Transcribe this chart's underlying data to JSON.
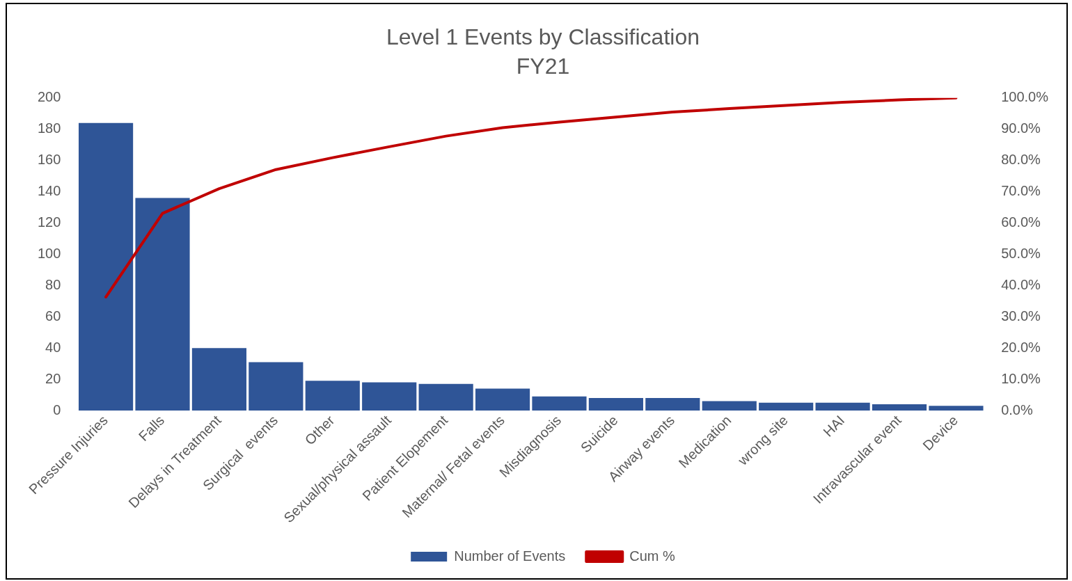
{
  "chart_data": {
    "type": "bar",
    "title": "Level 1 Events by Classification",
    "subtitle": "FY21",
    "categories": [
      "Pressure Injuries",
      "Falls",
      "Delays in Treatment",
      "Surgical  events",
      "Other",
      "Sexual/physical assault",
      "Patient Elopement",
      "Maternal/ Fetal events",
      "Misdiagnosis",
      "Suicide",
      "Airway events",
      "Medication",
      "wrong site",
      "HAI",
      "Intravascular event",
      "Device"
    ],
    "series": [
      {
        "name": "Number of Events",
        "color": "#2f5597",
        "values": [
          184,
          136,
          40,
          31,
          19,
          18,
          17,
          14,
          9,
          8,
          8,
          6,
          5,
          5,
          4,
          3
        ]
      },
      {
        "name": "Cum %",
        "type": "line",
        "axis": "y2",
        "color": "#c00000",
        "values": [
          36.3,
          63.1,
          71.0,
          77.1,
          80.9,
          84.4,
          87.8,
          90.5,
          92.3,
          93.9,
          95.5,
          96.6,
          97.6,
          98.6,
          99.4,
          100.0
        ]
      }
    ],
    "ylim": [
      0,
      200
    ],
    "yticks": [
      0,
      20,
      40,
      60,
      80,
      100,
      120,
      140,
      160,
      180,
      200
    ],
    "y2lim": [
      0,
      100
    ],
    "y2ticks": [
      {
        "value": 0,
        "label": "0.0%"
      },
      {
        "value": 10,
        "label": "10.0%"
      },
      {
        "value": 20,
        "label": "20.0%"
      },
      {
        "value": 30,
        "label": "30.0%"
      },
      {
        "value": 40,
        "label": "40.0%"
      },
      {
        "value": 50,
        "label": "50.0%"
      },
      {
        "value": 60,
        "label": "60.0%"
      },
      {
        "value": 70,
        "label": "70.0%"
      },
      {
        "value": 80,
        "label": "80.0%"
      },
      {
        "value": 90,
        "label": "90.0%"
      },
      {
        "value": 100,
        "label": "100.0%"
      }
    ],
    "grid": false,
    "legend": "bottom",
    "marker": "none",
    "line_style": "solid"
  }
}
